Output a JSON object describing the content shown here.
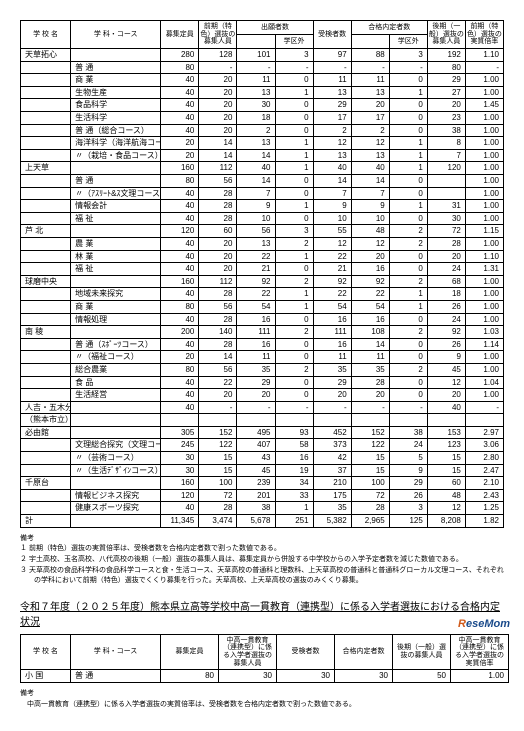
{
  "headers1": [
    "学 校 名",
    "学 科・コース",
    "募集定員",
    "前期（特色）選抜の募集人員",
    "出願者数",
    "",
    "受検者数",
    "合格内定者数",
    "",
    "後期（一般）選抜の募集人員",
    "前期（特色）選抜の実質倍率"
  ],
  "headers1sub": [
    "",
    "",
    "",
    "",
    "",
    "学区外",
    "",
    "",
    "学区外",
    "",
    ""
  ],
  "rows1": [
    [
      "天草拓心",
      "",
      "280",
      "128",
      "101",
      "3",
      "97",
      "88",
      "3",
      "192",
      "1.10"
    ],
    [
      "",
      "普 通",
      "80",
      "-",
      "-",
      "-",
      "-",
      "-",
      "-",
      "80",
      "-"
    ],
    [
      "",
      "商 業",
      "40",
      "20",
      "11",
      "0",
      "11",
      "11",
      "0",
      "29",
      "1.00"
    ],
    [
      "",
      "生物生産",
      "40",
      "20",
      "13",
      "1",
      "13",
      "13",
      "1",
      "27",
      "1.00"
    ],
    [
      "",
      "食品科学",
      "40",
      "20",
      "30",
      "0",
      "29",
      "20",
      "0",
      "20",
      "1.45"
    ],
    [
      "",
      "生活科学",
      "40",
      "20",
      "18",
      "0",
      "17",
      "17",
      "0",
      "23",
      "1.00"
    ],
    [
      "",
      "普 通（総合コース）",
      "40",
      "20",
      "2",
      "0",
      "2",
      "2",
      "0",
      "38",
      "1.00"
    ],
    [
      "",
      "海洋科学（海洋航海コース）",
      "20",
      "14",
      "13",
      "1",
      "12",
      "12",
      "1",
      "8",
      "1.00"
    ],
    [
      "",
      "〃（栽培・食品コース）",
      "20",
      "14",
      "14",
      "1",
      "13",
      "13",
      "1",
      "7",
      "1.00"
    ],
    [
      "上天草",
      "",
      "160",
      "112",
      "40",
      "1",
      "40",
      "40",
      "1",
      "120",
      "1.00"
    ],
    [
      "",
      "普 通",
      "80",
      "56",
      "14",
      "0",
      "14",
      "14",
      "0",
      "",
      "1.00"
    ],
    [
      "",
      "〃（ｱｽﾘｰﾄ&ｽ文理コース）",
      "40",
      "28",
      "7",
      "0",
      "7",
      "7",
      "0",
      "",
      "1.00"
    ],
    [
      "",
      "情報会計",
      "40",
      "28",
      "9",
      "1",
      "9",
      "9",
      "1",
      "31",
      "1.00"
    ],
    [
      "",
      "福 祉",
      "40",
      "28",
      "10",
      "0",
      "10",
      "10",
      "0",
      "30",
      "1.00"
    ],
    [
      "芦 北",
      "",
      "120",
      "60",
      "56",
      "3",
      "55",
      "48",
      "2",
      "72",
      "1.15"
    ],
    [
      "",
      "農 業",
      "40",
      "20",
      "13",
      "2",
      "12",
      "12",
      "2",
      "28",
      "1.00"
    ],
    [
      "",
      "林 業",
      "40",
      "20",
      "22",
      "1",
      "22",
      "20",
      "0",
      "20",
      "1.10"
    ],
    [
      "",
      "福 祉",
      "40",
      "20",
      "21",
      "0",
      "21",
      "16",
      "0",
      "24",
      "1.31"
    ],
    [
      "球磨中央",
      "",
      "160",
      "112",
      "92",
      "2",
      "92",
      "92",
      "2",
      "68",
      "1.00"
    ],
    [
      "",
      "地域未来探究",
      "40",
      "28",
      "22",
      "1",
      "22",
      "22",
      "1",
      "18",
      "1.00"
    ],
    [
      "",
      "商 業",
      "80",
      "56",
      "54",
      "1",
      "54",
      "54",
      "1",
      "26",
      "1.00"
    ],
    [
      "",
      "情報処理",
      "40",
      "28",
      "16",
      "0",
      "16",
      "16",
      "0",
      "24",
      "1.00"
    ],
    [
      "南 稜",
      "",
      "200",
      "140",
      "111",
      "2",
      "111",
      "108",
      "2",
      "92",
      "1.03"
    ],
    [
      "",
      "普 通（ｽﾎﾟｰﾂコース）",
      "40",
      "28",
      "16",
      "0",
      "16",
      "14",
      "0",
      "26",
      "1.14"
    ],
    [
      "",
      "〃（福祉コース）",
      "20",
      "14",
      "11",
      "0",
      "11",
      "11",
      "0",
      "9",
      "1.00"
    ],
    [
      "",
      "総合農業",
      "80",
      "56",
      "35",
      "2",
      "35",
      "35",
      "2",
      "45",
      "1.00"
    ],
    [
      "",
      "食 品",
      "40",
      "22",
      "29",
      "0",
      "29",
      "28",
      "0",
      "12",
      "1.04"
    ],
    [
      "",
      "生活経営",
      "40",
      "20",
      "20",
      "0",
      "20",
      "20",
      "0",
      "20",
      "1.00"
    ],
    [
      "人吉・五木分校（普通）",
      "",
      "40",
      "-",
      "-",
      "-",
      "-",
      "-",
      "-",
      "40",
      "-"
    ],
    [
      "（熊本市立）",
      "",
      "",
      "",
      "",
      "",
      "",
      "",
      "",
      "",
      ""
    ],
    [
      "必由館",
      "",
      "305",
      "152",
      "495",
      "93",
      "452",
      "152",
      "38",
      "153",
      "2.97"
    ],
    [
      "",
      "文理総合探究（文理コース）",
      "245",
      "122",
      "407",
      "58",
      "373",
      "122",
      "24",
      "123",
      "3.06"
    ],
    [
      "",
      "〃（芸術コース）",
      "30",
      "15",
      "43",
      "16",
      "42",
      "15",
      "5",
      "15",
      "2.80"
    ],
    [
      "",
      "〃（生活ﾃﾞｻﾞｲﾝコース）",
      "30",
      "15",
      "45",
      "19",
      "37",
      "15",
      "9",
      "15",
      "2.47"
    ],
    [
      "千原台",
      "",
      "160",
      "100",
      "239",
      "34",
      "210",
      "100",
      "29",
      "60",
      "2.10"
    ],
    [
      "",
      "情報ビジネス探究",
      "120",
      "72",
      "201",
      "33",
      "175",
      "72",
      "26",
      "48",
      "2.43"
    ],
    [
      "",
      "健康スポーツ探究",
      "40",
      "28",
      "38",
      "1",
      "35",
      "28",
      "3",
      "12",
      "1.25"
    ],
    [
      "計",
      "",
      "11,345",
      "3,474",
      "5,678",
      "251",
      "5,382",
      "2,965",
      "125",
      "8,208",
      "1.82"
    ]
  ],
  "notes1": [
    "備考",
    "１ 前期（特色）選抜の実質倍率は、受検者数を合格内定者数で割った数値である。",
    "２ 宇土高校、玉名高校、八代高校の後期（一般）選抜の募集人員は、募集定員から併設する中学校からの入学予定者数を減じた数値である。",
    "３ 天草高校の食品科学科の食品科学コースと食・生活コース、天草高校の普通科と理数科、上天草高校の普通科と普通科グローカル文理コース、それぞれの学科において前期（特色）選抜でくくり募集を行った。天草高校、上天草高校の選抜のみくくり募集。"
  ],
  "title2": "令和７年度（２０２５年度）熊本県立高等学校中高一貫教育（連携型）に係る入学者選抜における合格内定状況",
  "headers2": [
    "学 校 名",
    "学 科・コース",
    "募集定員",
    "中高一貫教育（連携型）に係る入学者選抜の募集人員",
    "受検者数",
    "合格内定者数",
    "後期（一般）選抜の募集人員",
    "中高一貫教育（連携型）に係る入学者選抜の実質倍率"
  ],
  "rows2": [
    [
      "小 国",
      "普 通",
      "80",
      "30",
      "30",
      "30",
      "50",
      "1.00"
    ]
  ],
  "notes2": [
    "備考",
    "　中高一貫教育（連携型）に係る入学者選抜の実質倍率は、受検者数を合格内定者数で割った数値である。"
  ]
}
